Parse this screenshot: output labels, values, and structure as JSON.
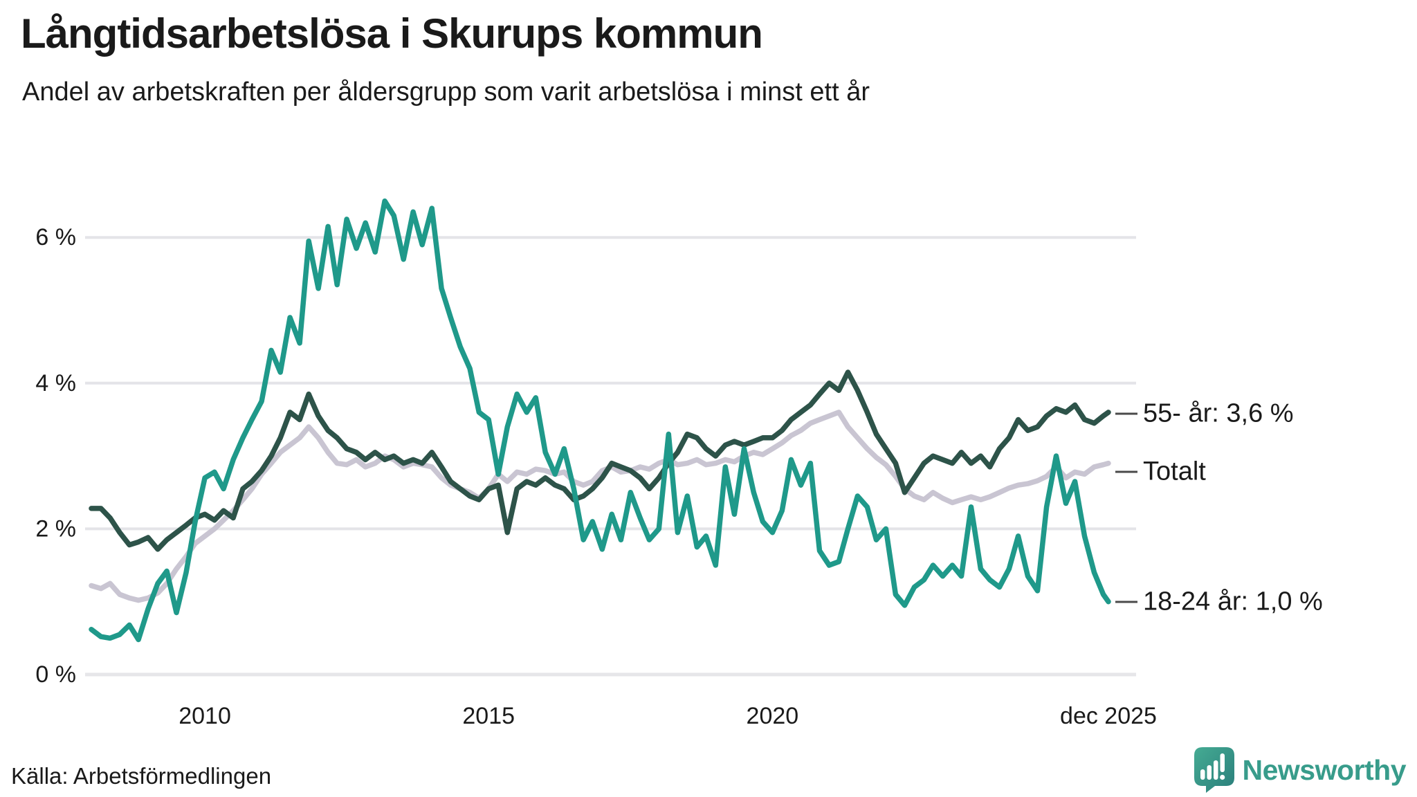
{
  "header": {
    "title": "Långtidsarbetslösa i Skurups kommun",
    "subtitle": "Andel av arbetskraften per åldersgrupp som varit arbetslösa i minst ett år"
  },
  "footer": {
    "source": "Källa: Arbetsförmedlingen",
    "brand": "Newsworthy"
  },
  "colors": {
    "teal": "#1F998A",
    "dark_green": "#2D5349",
    "gray": "#C9C5D2",
    "grid": "#E4E4E8",
    "zero_grid": "#E6E6E9",
    "text": "#1A1A1A",
    "connector": "#4A4A4A",
    "brand_teal": "#389C8B",
    "brand_grad_start": "#45AB93",
    "brand_grad_end": "#2A7E7B"
  },
  "chart_data": {
    "type": "line",
    "title": "Långtidsarbetslösa i Skurups kommun",
    "subtitle": "Andel av arbetskraften per åldersgrupp som varit arbetslösa i minst ett år",
    "xlabel": "",
    "ylabel": "",
    "x_unit": "year (decimal, monthly series 2008–dec 2025)",
    "xlim": [
      2008.0,
      2025.92
    ],
    "ylim": [
      0,
      6.6
    ],
    "grid": "horizontal",
    "legend_position": "right-end-labels",
    "yticks": [
      {
        "value": 0,
        "label": "0 %"
      },
      {
        "value": 2,
        "label": "2 %"
      },
      {
        "value": 4,
        "label": "4 %"
      },
      {
        "value": 6,
        "label": "6 %"
      }
    ],
    "xticks": [
      {
        "value": 2010,
        "label": "2010"
      },
      {
        "value": 2015,
        "label": "2015"
      },
      {
        "value": 2020,
        "label": "2020"
      },
      {
        "value": 2025.92,
        "label": "dec 2025"
      }
    ],
    "x": [
      2008.0,
      2008.17,
      2008.33,
      2008.5,
      2008.67,
      2008.83,
      2009.0,
      2009.17,
      2009.33,
      2009.5,
      2009.67,
      2009.83,
      2010.0,
      2010.17,
      2010.33,
      2010.5,
      2010.67,
      2010.83,
      2011.0,
      2011.17,
      2011.33,
      2011.5,
      2011.67,
      2011.83,
      2012.0,
      2012.17,
      2012.33,
      2012.5,
      2012.67,
      2012.83,
      2013.0,
      2013.17,
      2013.33,
      2013.5,
      2013.67,
      2013.83,
      2014.0,
      2014.17,
      2014.33,
      2014.5,
      2014.67,
      2014.83,
      2015.0,
      2015.17,
      2015.33,
      2015.5,
      2015.67,
      2015.83,
      2016.0,
      2016.17,
      2016.33,
      2016.5,
      2016.67,
      2016.83,
      2017.0,
      2017.17,
      2017.33,
      2017.5,
      2017.67,
      2017.83,
      2018.0,
      2018.17,
      2018.33,
      2018.5,
      2018.67,
      2018.83,
      2019.0,
      2019.17,
      2019.33,
      2019.5,
      2019.67,
      2019.83,
      2020.0,
      2020.17,
      2020.33,
      2020.5,
      2020.67,
      2020.83,
      2021.0,
      2021.17,
      2021.33,
      2021.5,
      2021.67,
      2021.83,
      2022.0,
      2022.17,
      2022.33,
      2022.5,
      2022.67,
      2022.83,
      2023.0,
      2023.17,
      2023.33,
      2023.5,
      2023.67,
      2023.83,
      2024.0,
      2024.17,
      2024.33,
      2024.5,
      2024.67,
      2024.83,
      2025.0,
      2025.17,
      2025.33,
      2025.5,
      2025.67,
      2025.83,
      2025.92
    ],
    "series": [
      {
        "name": "18-24 år",
        "color_key": "teal",
        "end_label": "18-24 år: 1,0 %",
        "end_value": 1.0,
        "values": [
          0.62,
          0.52,
          0.5,
          0.55,
          0.68,
          0.48,
          0.9,
          1.25,
          1.42,
          0.85,
          1.4,
          2.1,
          2.7,
          2.78,
          2.55,
          2.95,
          3.25,
          3.5,
          3.75,
          4.45,
          4.15,
          4.9,
          4.55,
          5.95,
          5.3,
          6.15,
          5.35,
          6.25,
          5.85,
          6.2,
          5.8,
          6.5,
          6.3,
          5.7,
          6.35,
          5.9,
          6.4,
          5.3,
          4.9,
          4.5,
          4.2,
          3.6,
          3.5,
          2.75,
          3.4,
          3.85,
          3.6,
          3.8,
          3.05,
          2.75,
          3.1,
          2.55,
          1.85,
          2.1,
          1.72,
          2.2,
          1.85,
          2.5,
          2.15,
          1.85,
          2.0,
          3.3,
          1.95,
          2.45,
          1.75,
          1.9,
          1.5,
          2.85,
          2.2,
          3.1,
          2.5,
          2.1,
          1.95,
          2.25,
          2.95,
          2.6,
          2.9,
          1.7,
          1.5,
          1.55,
          2.0,
          2.45,
          2.3,
          1.85,
          2.0,
          1.1,
          0.95,
          1.2,
          1.3,
          1.5,
          1.35,
          1.5,
          1.35,
          2.3,
          1.45,
          1.3,
          1.2,
          1.45,
          1.9,
          1.35,
          1.15,
          2.3,
          3.0,
          2.35,
          2.65,
          1.9,
          1.4,
          1.1,
          1.0
        ]
      },
      {
        "name": "55- år",
        "color_key": "dark_green",
        "end_label": "55- år: 3,6 %",
        "end_value": 3.6,
        "values": [
          2.28,
          2.28,
          2.15,
          1.95,
          1.78,
          1.82,
          1.88,
          1.72,
          1.85,
          1.95,
          2.05,
          2.15,
          2.2,
          2.12,
          2.25,
          2.15,
          2.55,
          2.65,
          2.8,
          3.0,
          3.25,
          3.6,
          3.5,
          3.85,
          3.55,
          3.35,
          3.25,
          3.1,
          3.05,
          2.95,
          3.05,
          2.95,
          3.0,
          2.9,
          2.95,
          2.9,
          3.05,
          2.85,
          2.65,
          2.55,
          2.45,
          2.4,
          2.55,
          2.6,
          1.95,
          2.55,
          2.65,
          2.6,
          2.7,
          2.6,
          2.55,
          2.4,
          2.45,
          2.55,
          2.7,
          2.9,
          2.85,
          2.8,
          2.7,
          2.55,
          2.7,
          2.9,
          3.05,
          3.3,
          3.25,
          3.1,
          3.0,
          3.15,
          3.2,
          3.15,
          3.2,
          3.25,
          3.25,
          3.35,
          3.5,
          3.6,
          3.7,
          3.85,
          4.0,
          3.9,
          4.15,
          3.9,
          3.6,
          3.3,
          3.1,
          2.9,
          2.5,
          2.7,
          2.9,
          3.0,
          2.95,
          2.9,
          3.05,
          2.9,
          3.0,
          2.85,
          3.1,
          3.25,
          3.5,
          3.35,
          3.4,
          3.55,
          3.65,
          3.6,
          3.7,
          3.5,
          3.45,
          3.55,
          3.6
        ]
      },
      {
        "name": "Totalt",
        "color_key": "gray",
        "end_label": "Totalt",
        "end_value": 2.9,
        "values": [
          1.22,
          1.18,
          1.25,
          1.1,
          1.05,
          1.02,
          1.05,
          1.12,
          1.25,
          1.45,
          1.62,
          1.8,
          1.9,
          2.0,
          2.12,
          2.25,
          2.4,
          2.55,
          2.75,
          2.9,
          3.05,
          3.15,
          3.25,
          3.4,
          3.25,
          3.05,
          2.9,
          2.88,
          2.95,
          2.85,
          2.9,
          3.0,
          2.95,
          2.85,
          2.9,
          2.88,
          2.85,
          2.7,
          2.6,
          2.55,
          2.5,
          2.42,
          2.55,
          2.75,
          2.65,
          2.78,
          2.75,
          2.82,
          2.8,
          2.75,
          2.78,
          2.65,
          2.6,
          2.65,
          2.8,
          2.85,
          2.78,
          2.8,
          2.85,
          2.82,
          2.9,
          2.95,
          2.88,
          2.9,
          2.95,
          2.88,
          2.9,
          2.95,
          2.92,
          3.0,
          3.05,
          3.02,
          3.1,
          3.18,
          3.28,
          3.35,
          3.45,
          3.5,
          3.55,
          3.6,
          3.4,
          3.25,
          3.1,
          2.98,
          2.88,
          2.72,
          2.55,
          2.45,
          2.4,
          2.5,
          2.42,
          2.36,
          2.4,
          2.44,
          2.4,
          2.44,
          2.5,
          2.56,
          2.6,
          2.62,
          2.66,
          2.72,
          2.85,
          2.7,
          2.78,
          2.75,
          2.85,
          2.88,
          2.9
        ]
      }
    ]
  }
}
